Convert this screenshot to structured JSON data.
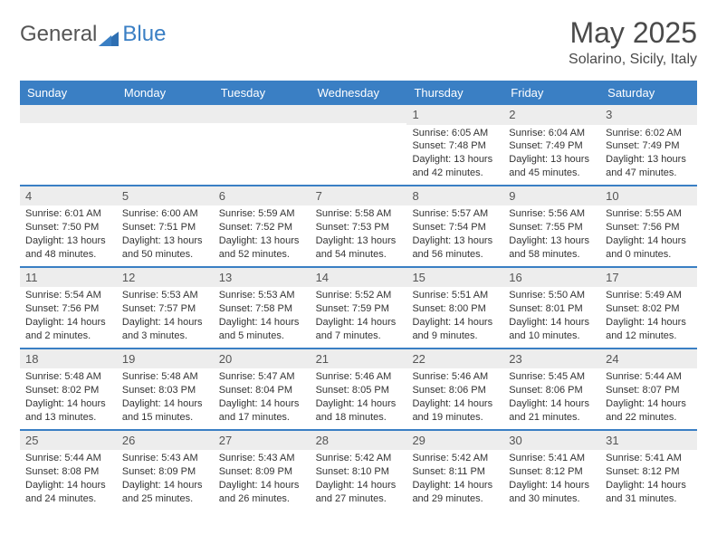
{
  "logo": {
    "text1": "General",
    "text2": "Blue"
  },
  "title": "May 2025",
  "location": "Solarino, Sicily, Italy",
  "colors": {
    "header_bg": "#3a7fc4",
    "header_text": "#ffffff",
    "daynum_bg": "#ededed",
    "border": "#3a7fc4",
    "body_text": "#333333",
    "title_text": "#4a4a4a"
  },
  "weekdays": [
    "Sunday",
    "Monday",
    "Tuesday",
    "Wednesday",
    "Thursday",
    "Friday",
    "Saturday"
  ],
  "weeks": [
    [
      {
        "num": "",
        "sunrise": "",
        "sunset": "",
        "daylight": ""
      },
      {
        "num": "",
        "sunrise": "",
        "sunset": "",
        "daylight": ""
      },
      {
        "num": "",
        "sunrise": "",
        "sunset": "",
        "daylight": ""
      },
      {
        "num": "",
        "sunrise": "",
        "sunset": "",
        "daylight": ""
      },
      {
        "num": "1",
        "sunrise": "Sunrise: 6:05 AM",
        "sunset": "Sunset: 7:48 PM",
        "daylight": "Daylight: 13 hours and 42 minutes."
      },
      {
        "num": "2",
        "sunrise": "Sunrise: 6:04 AM",
        "sunset": "Sunset: 7:49 PM",
        "daylight": "Daylight: 13 hours and 45 minutes."
      },
      {
        "num": "3",
        "sunrise": "Sunrise: 6:02 AM",
        "sunset": "Sunset: 7:49 PM",
        "daylight": "Daylight: 13 hours and 47 minutes."
      }
    ],
    [
      {
        "num": "4",
        "sunrise": "Sunrise: 6:01 AM",
        "sunset": "Sunset: 7:50 PM",
        "daylight": "Daylight: 13 hours and 48 minutes."
      },
      {
        "num": "5",
        "sunrise": "Sunrise: 6:00 AM",
        "sunset": "Sunset: 7:51 PM",
        "daylight": "Daylight: 13 hours and 50 minutes."
      },
      {
        "num": "6",
        "sunrise": "Sunrise: 5:59 AM",
        "sunset": "Sunset: 7:52 PM",
        "daylight": "Daylight: 13 hours and 52 minutes."
      },
      {
        "num": "7",
        "sunrise": "Sunrise: 5:58 AM",
        "sunset": "Sunset: 7:53 PM",
        "daylight": "Daylight: 13 hours and 54 minutes."
      },
      {
        "num": "8",
        "sunrise": "Sunrise: 5:57 AM",
        "sunset": "Sunset: 7:54 PM",
        "daylight": "Daylight: 13 hours and 56 minutes."
      },
      {
        "num": "9",
        "sunrise": "Sunrise: 5:56 AM",
        "sunset": "Sunset: 7:55 PM",
        "daylight": "Daylight: 13 hours and 58 minutes."
      },
      {
        "num": "10",
        "sunrise": "Sunrise: 5:55 AM",
        "sunset": "Sunset: 7:56 PM",
        "daylight": "Daylight: 14 hours and 0 minutes."
      }
    ],
    [
      {
        "num": "11",
        "sunrise": "Sunrise: 5:54 AM",
        "sunset": "Sunset: 7:56 PM",
        "daylight": "Daylight: 14 hours and 2 minutes."
      },
      {
        "num": "12",
        "sunrise": "Sunrise: 5:53 AM",
        "sunset": "Sunset: 7:57 PM",
        "daylight": "Daylight: 14 hours and 3 minutes."
      },
      {
        "num": "13",
        "sunrise": "Sunrise: 5:53 AM",
        "sunset": "Sunset: 7:58 PM",
        "daylight": "Daylight: 14 hours and 5 minutes."
      },
      {
        "num": "14",
        "sunrise": "Sunrise: 5:52 AM",
        "sunset": "Sunset: 7:59 PM",
        "daylight": "Daylight: 14 hours and 7 minutes."
      },
      {
        "num": "15",
        "sunrise": "Sunrise: 5:51 AM",
        "sunset": "Sunset: 8:00 PM",
        "daylight": "Daylight: 14 hours and 9 minutes."
      },
      {
        "num": "16",
        "sunrise": "Sunrise: 5:50 AM",
        "sunset": "Sunset: 8:01 PM",
        "daylight": "Daylight: 14 hours and 10 minutes."
      },
      {
        "num": "17",
        "sunrise": "Sunrise: 5:49 AM",
        "sunset": "Sunset: 8:02 PM",
        "daylight": "Daylight: 14 hours and 12 minutes."
      }
    ],
    [
      {
        "num": "18",
        "sunrise": "Sunrise: 5:48 AM",
        "sunset": "Sunset: 8:02 PM",
        "daylight": "Daylight: 14 hours and 13 minutes."
      },
      {
        "num": "19",
        "sunrise": "Sunrise: 5:48 AM",
        "sunset": "Sunset: 8:03 PM",
        "daylight": "Daylight: 14 hours and 15 minutes."
      },
      {
        "num": "20",
        "sunrise": "Sunrise: 5:47 AM",
        "sunset": "Sunset: 8:04 PM",
        "daylight": "Daylight: 14 hours and 17 minutes."
      },
      {
        "num": "21",
        "sunrise": "Sunrise: 5:46 AM",
        "sunset": "Sunset: 8:05 PM",
        "daylight": "Daylight: 14 hours and 18 minutes."
      },
      {
        "num": "22",
        "sunrise": "Sunrise: 5:46 AM",
        "sunset": "Sunset: 8:06 PM",
        "daylight": "Daylight: 14 hours and 19 minutes."
      },
      {
        "num": "23",
        "sunrise": "Sunrise: 5:45 AM",
        "sunset": "Sunset: 8:06 PM",
        "daylight": "Daylight: 14 hours and 21 minutes."
      },
      {
        "num": "24",
        "sunrise": "Sunrise: 5:44 AM",
        "sunset": "Sunset: 8:07 PM",
        "daylight": "Daylight: 14 hours and 22 minutes."
      }
    ],
    [
      {
        "num": "25",
        "sunrise": "Sunrise: 5:44 AM",
        "sunset": "Sunset: 8:08 PM",
        "daylight": "Daylight: 14 hours and 24 minutes."
      },
      {
        "num": "26",
        "sunrise": "Sunrise: 5:43 AM",
        "sunset": "Sunset: 8:09 PM",
        "daylight": "Daylight: 14 hours and 25 minutes."
      },
      {
        "num": "27",
        "sunrise": "Sunrise: 5:43 AM",
        "sunset": "Sunset: 8:09 PM",
        "daylight": "Daylight: 14 hours and 26 minutes."
      },
      {
        "num": "28",
        "sunrise": "Sunrise: 5:42 AM",
        "sunset": "Sunset: 8:10 PM",
        "daylight": "Daylight: 14 hours and 27 minutes."
      },
      {
        "num": "29",
        "sunrise": "Sunrise: 5:42 AM",
        "sunset": "Sunset: 8:11 PM",
        "daylight": "Daylight: 14 hours and 29 minutes."
      },
      {
        "num": "30",
        "sunrise": "Sunrise: 5:41 AM",
        "sunset": "Sunset: 8:12 PM",
        "daylight": "Daylight: 14 hours and 30 minutes."
      },
      {
        "num": "31",
        "sunrise": "Sunrise: 5:41 AM",
        "sunset": "Sunset: 8:12 PM",
        "daylight": "Daylight: 14 hours and 31 minutes."
      }
    ]
  ]
}
